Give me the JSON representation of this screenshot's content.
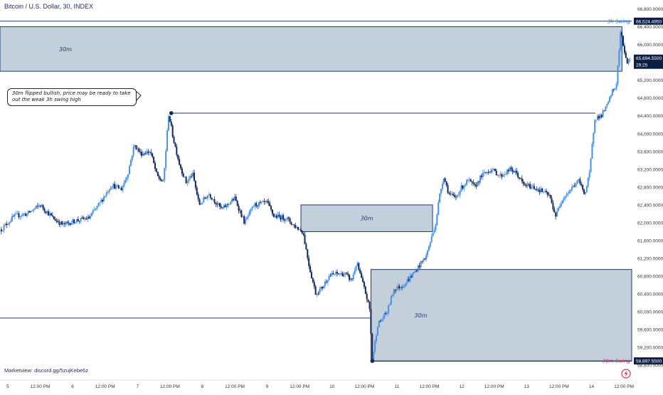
{
  "header": {
    "title": "Bitcoin / U.S. Dollar, 30, INDEX"
  },
  "annotation": {
    "text": "30m flipped bullish, price may be ready to take out the weak 3h swing high"
  },
  "footer": {
    "watermark": "Marketview: discord.gg/5zujKebe6z"
  },
  "colors": {
    "background": "#ffffff",
    "zone_fill": "#c4cfdc",
    "zone_border": "#1e3a6e",
    "bull_candle": "#4a90e2",
    "bear_candle": "#10285a",
    "swing_high_label": "#1a73d9",
    "swing_low_label": "#b83560",
    "price_label": "#0b1f44"
  },
  "chart_data": {
    "type": "candlestick",
    "title": "Bitcoin / U.S. Dollar, 30, INDEX",
    "ylim": [
      58500,
      67000
    ],
    "y_ticks": [
      66800,
      66400,
      66000,
      65600,
      65200,
      64800,
      64400,
      64000,
      63600,
      63200,
      62800,
      62400,
      62000,
      61600,
      61200,
      60800,
      60400,
      60000,
      59600,
      59200,
      58800
    ],
    "y_tick_labels": [
      "66,800.0000",
      "66,400.0000",
      "66,000.0000",
      "65,600.0000",
      "65,200.0000",
      "64,800.0000",
      "64,400.0000",
      "64,000.0000",
      "63,600.0000",
      "63,200.0000",
      "62,800.0000",
      "62,400.0000",
      "62,000.0000",
      "61,600.0000",
      "61,200.0000",
      "60,800.0000",
      "60,400.0000",
      "60,000.0000",
      "59,600.0000",
      "59,200.0000",
      "58,800.0000"
    ],
    "x_ticks": [
      {
        "x": 0.0,
        "label": "5"
      },
      {
        "x": 0.5,
        "label": "12:00 PM"
      },
      {
        "x": 1.0,
        "label": "6"
      },
      {
        "x": 1.5,
        "label": "12:00 PM"
      },
      {
        "x": 2.0,
        "label": "7"
      },
      {
        "x": 2.5,
        "label": "12:00 PM"
      },
      {
        "x": 3.0,
        "label": "8"
      },
      {
        "x": 3.5,
        "label": "12:00 PM"
      },
      {
        "x": 4.0,
        "label": "9"
      },
      {
        "x": 4.5,
        "label": "12:00 PM"
      },
      {
        "x": 5.0,
        "label": "10"
      },
      {
        "x": 5.5,
        "label": "12:00 PM"
      },
      {
        "x": 6.0,
        "label": "11"
      },
      {
        "x": 6.5,
        "label": "12:00 PM"
      },
      {
        "x": 7.0,
        "label": "12"
      },
      {
        "x": 7.5,
        "label": "12:00 PM"
      },
      {
        "x": 8.0,
        "label": "13"
      },
      {
        "x": 8.5,
        "label": "12:00 PM"
      },
      {
        "x": 9.0,
        "label": "14"
      },
      {
        "x": 9.5,
        "label": "12:00 PM"
      }
    ],
    "x_range": [
      -0.12,
      9.62
    ],
    "price_path": [
      [
        -0.1,
        61850
      ],
      [
        0.1,
        62150
      ],
      [
        0.3,
        62200
      ],
      [
        0.5,
        62400
      ],
      [
        0.7,
        62100
      ],
      [
        0.85,
        61950
      ],
      [
        1.05,
        62050
      ],
      [
        1.25,
        62100
      ],
      [
        1.4,
        62400
      ],
      [
        1.6,
        62850
      ],
      [
        1.75,
        62750
      ],
      [
        1.85,
        63100
      ],
      [
        1.95,
        63750
      ],
      [
        2.05,
        63550
      ],
      [
        2.2,
        63600
      ],
      [
        2.3,
        63050
      ],
      [
        2.4,
        62900
      ],
      [
        2.48,
        64450
      ],
      [
        2.55,
        63900
      ],
      [
        2.65,
        63300
      ],
      [
        2.75,
        62900
      ],
      [
        2.85,
        63100
      ],
      [
        2.95,
        62400
      ],
      [
        3.1,
        62650
      ],
      [
        3.3,
        62300
      ],
      [
        3.5,
        62550
      ],
      [
        3.65,
        62000
      ],
      [
        3.8,
        62400
      ],
      [
        4.0,
        62450
      ],
      [
        4.1,
        62150
      ],
      [
        4.3,
        62100
      ],
      [
        4.4,
        61950
      ],
      [
        4.55,
        61800
      ],
      [
        4.65,
        61000
      ],
      [
        4.75,
        60400
      ],
      [
        4.85,
        60550
      ],
      [
        4.95,
        60800
      ],
      [
        5.05,
        60850
      ],
      [
        5.2,
        60850
      ],
      [
        5.3,
        60700
      ],
      [
        5.38,
        61100
      ],
      [
        5.45,
        60750
      ],
      [
        5.52,
        60400
      ],
      [
        5.58,
        60050
      ],
      [
        5.62,
        58900
      ],
      [
        5.7,
        59700
      ],
      [
        5.85,
        60000
      ],
      [
        5.95,
        60500
      ],
      [
        6.1,
        60600
      ],
      [
        6.25,
        60850
      ],
      [
        6.35,
        61050
      ],
      [
        6.45,
        61250
      ],
      [
        6.52,
        61600
      ],
      [
        6.6,
        62000
      ],
      [
        6.65,
        62550
      ],
      [
        6.72,
        63050
      ],
      [
        6.8,
        62650
      ],
      [
        6.9,
        62550
      ],
      [
        7.0,
        62800
      ],
      [
        7.1,
        62950
      ],
      [
        7.2,
        62800
      ],
      [
        7.3,
        63050
      ],
      [
        7.45,
        63200
      ],
      [
        7.6,
        63050
      ],
      [
        7.75,
        63200
      ],
      [
        7.85,
        63100
      ],
      [
        7.95,
        62850
      ],
      [
        8.1,
        62800
      ],
      [
        8.25,
        62700
      ],
      [
        8.35,
        62600
      ],
      [
        8.45,
        62150
      ],
      [
        8.55,
        62550
      ],
      [
        8.65,
        62700
      ],
      [
        8.8,
        62950
      ],
      [
        8.9,
        62650
      ],
      [
        8.97,
        63100
      ],
      [
        9.05,
        64350
      ],
      [
        9.15,
        64400
      ],
      [
        9.25,
        64650
      ],
      [
        9.32,
        64950
      ],
      [
        9.38,
        65050
      ],
      [
        9.45,
        66300
      ],
      [
        9.5,
        65900
      ],
      [
        9.55,
        65600
      ],
      [
        9.6,
        65690
      ]
    ],
    "zones": [
      {
        "label": "30m",
        "x0": -0.12,
        "x1": 9.47,
        "y0": 65400,
        "y1": 66400
      },
      {
        "label": "30m",
        "x0": 4.52,
        "x1": 6.55,
        "y0": 61800,
        "y1": 62400
      },
      {
        "label": "30m",
        "x0": 5.6,
        "x1": 9.62,
        "y0": 58890,
        "y1": 60950
      }
    ],
    "swing_lines": [
      {
        "x0": -0.12,
        "x1": 9.62,
        "y": 66524.45,
        "label": "3h Swing"
      },
      {
        "x0": 2.52,
        "x1": 9.06,
        "y": 64460,
        "label": ""
      },
      {
        "x0": -0.12,
        "x1": 5.6,
        "y": 59860,
        "label": ""
      },
      {
        "x0": 5.62,
        "x1": 9.62,
        "y": 58897.55,
        "label": "30m Swing"
      }
    ],
    "markers": [
      {
        "x": 2.52,
        "y": 64460
      },
      {
        "x": 5.62,
        "y": 58897.55
      }
    ],
    "price_labels": [
      {
        "y": 66524.45,
        "text": "66,524.4950"
      },
      {
        "y": 65694.55,
        "text": "65,694.5500",
        "sub": "29:25"
      },
      {
        "y": 58897.55,
        "text": "58,897.5500"
      }
    ]
  }
}
